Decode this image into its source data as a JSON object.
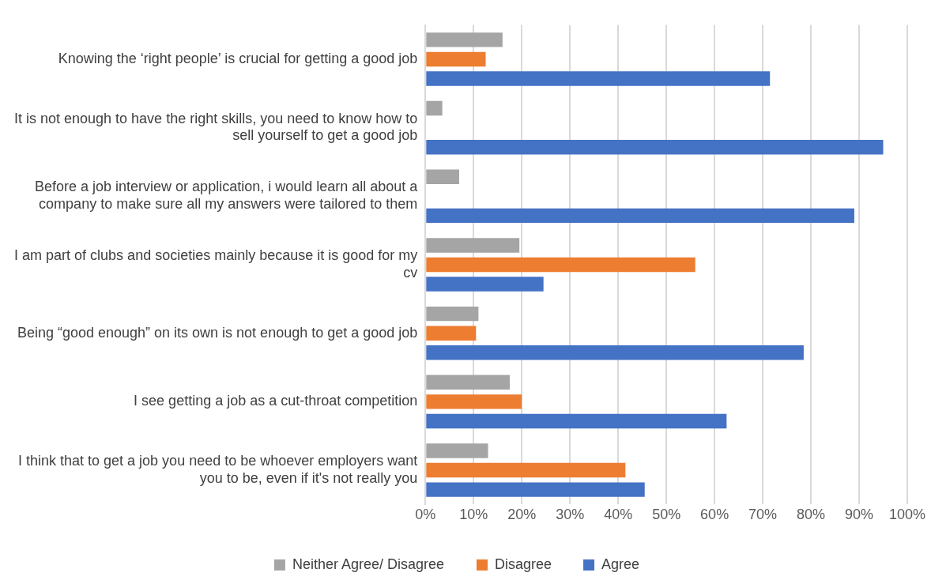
{
  "chart_data": {
    "type": "bar",
    "orientation": "horizontal",
    "categories": [
      "Knowing the ‘right people’ is crucial for getting a good job",
      "It is not enough to have the right skills, you need to know how to sell yourself to get a good job",
      "Before a job interview or application, i would learn all about a company to make sure all my answers were tailored to them",
      "I am part of clubs and societies mainly because it is good for my cv",
      "Being “good enough” on its own is not enough to get a good job",
      "I see getting a job as a cut-throat competition",
      "I think that to get a job you need to be whoever employers want you to be, even if it's not really you"
    ],
    "series": [
      {
        "name": "Neither Agree/ Disagree",
        "color": "#a5a5a5",
        "values": [
          16,
          3.5,
          7,
          19.5,
          11,
          17.5,
          13
        ]
      },
      {
        "name": "Disagree",
        "color": "#ed7d31",
        "values": [
          12.5,
          0,
          0,
          56,
          10.5,
          20,
          41.5
        ]
      },
      {
        "name": "Agree",
        "color": "#4472c4",
        "values": [
          71.5,
          95,
          89,
          24.5,
          78.5,
          62.5,
          45.5
        ]
      }
    ],
    "xlim": [
      0,
      100
    ],
    "xticks": [
      {
        "value": 0,
        "label": "0%"
      },
      {
        "value": 10,
        "label": "10%"
      },
      {
        "value": 20,
        "label": "20%"
      },
      {
        "value": 30,
        "label": "30%"
      },
      {
        "value": 40,
        "label": "40%"
      },
      {
        "value": 50,
        "label": "50%"
      },
      {
        "value": 60,
        "label": "60%"
      },
      {
        "value": 70,
        "label": "70%"
      },
      {
        "value": 80,
        "label": "80%"
      },
      {
        "value": 90,
        "label": "90%"
      },
      {
        "value": 100,
        "label": "100%"
      }
    ],
    "grid": "x",
    "legend": "bottom"
  }
}
